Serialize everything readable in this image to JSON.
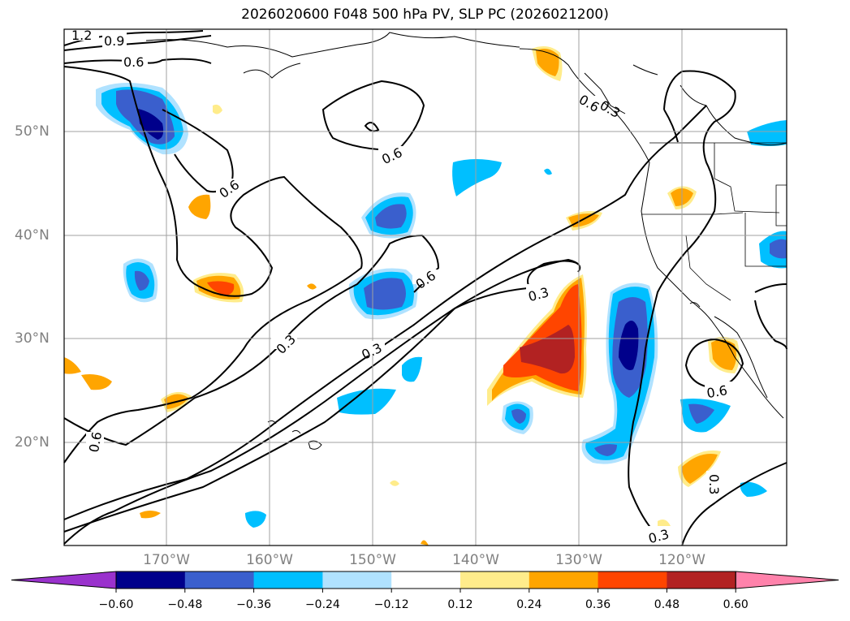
{
  "title": "2026020600 F048 500 hPa PV, SLP PC (2026021200)",
  "map": {
    "lat_labels": [
      "50°N",
      "40°N",
      "30°N",
      "20°N"
    ],
    "lon_labels": [
      "170°W",
      "160°W",
      "150°W",
      "140°W",
      "130°W",
      "120°W"
    ],
    "extent": {
      "lon_min": -180,
      "lon_max": -110,
      "lat_min": 10,
      "lat_max": 60
    }
  },
  "contour_labels": [
    "1.2",
    "0.9",
    "0.6",
    "0.6",
    "0.6",
    "0.6",
    "0.3",
    "0.3",
    "0.3",
    "0.6",
    "0.6",
    "0.3",
    "0.6",
    "0.3",
    "0.3"
  ],
  "colorbar": {
    "ticks": [
      "−0.60",
      "−0.48",
      "−0.36",
      "−0.24",
      "−0.12",
      "0.12",
      "0.24",
      "0.36",
      "0.48",
      "0.60"
    ],
    "colors": [
      "#9a32cd",
      "#00008b",
      "#3a5fcd",
      "#00bfff",
      "#b0e2ff",
      "#ffffff",
      "#ffec8b",
      "#ffa500",
      "#ff4500",
      "#b22222",
      "#ff82ab"
    ]
  },
  "palette": {
    "neg1": "#b0e2ff",
    "neg2": "#00bfff",
    "neg3": "#3a5fcd",
    "neg4": "#00008b",
    "pos1": "#ffec8b",
    "pos2": "#ffa500",
    "pos3": "#ff4500",
    "pos4": "#b22222"
  }
}
